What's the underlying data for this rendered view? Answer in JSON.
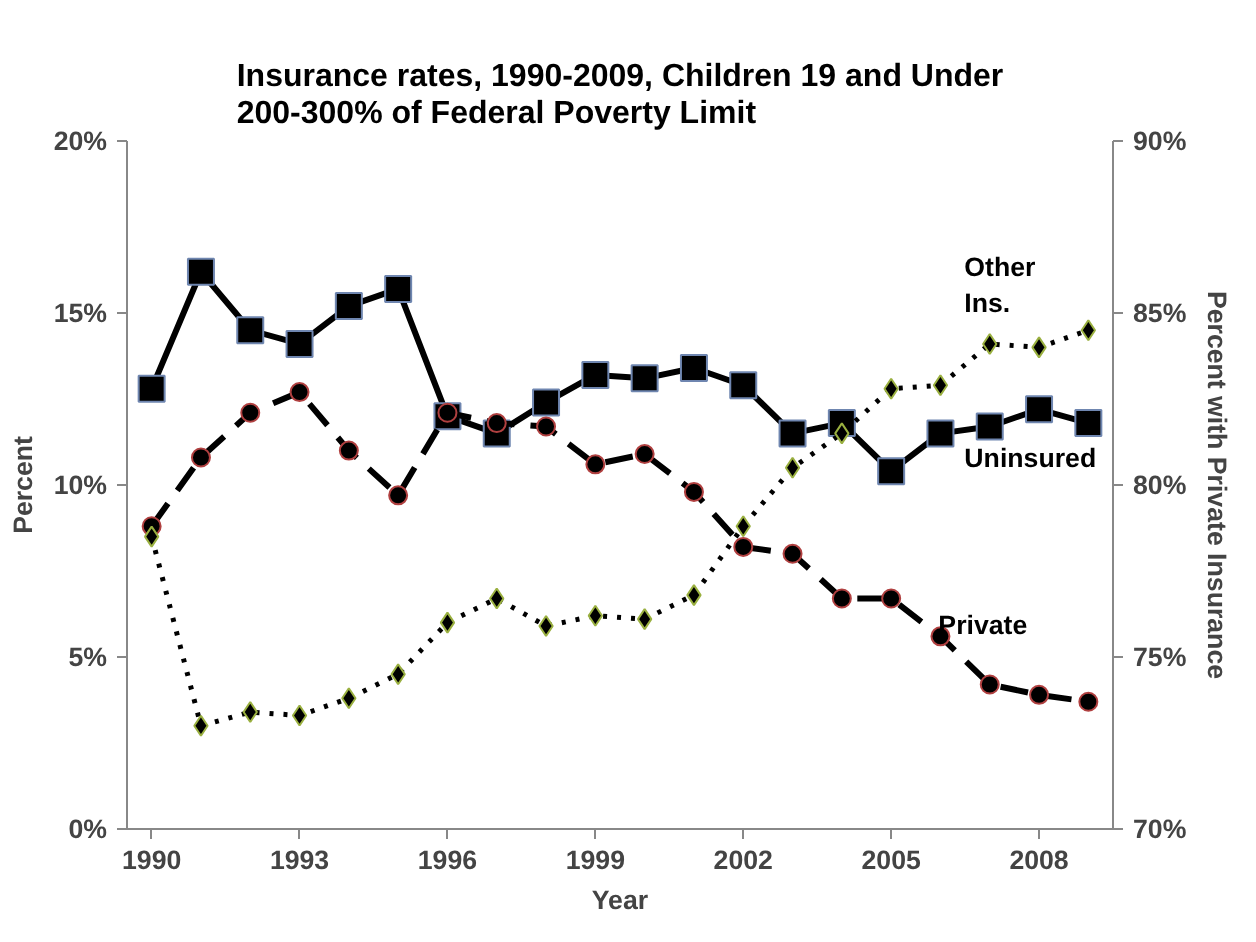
{
  "chart_data": {
    "type": "line",
    "title": "Insurance rates, 1990-2009, Children 19 and Under\n200-300% of Federal Poverty Limit",
    "xlabel": "Year",
    "ylabel": "Percent",
    "y2label": "Percent with Private Insurance",
    "x": [
      1990,
      1991,
      1992,
      1993,
      1994,
      1995,
      1996,
      1997,
      1998,
      1999,
      2000,
      2001,
      2002,
      2003,
      2004,
      2005,
      2006,
      2007,
      2008,
      2009
    ],
    "xlim": [
      1989.5,
      2009.5
    ],
    "xticks": [
      1990,
      1993,
      1996,
      1999,
      2002,
      2005,
      2008
    ],
    "ylim": [
      0,
      20
    ],
    "yticks": [
      {
        "value": 0,
        "label": "0%"
      },
      {
        "value": 5,
        "label": "5%"
      },
      {
        "value": 10,
        "label": "10%"
      },
      {
        "value": 15,
        "label": "15%"
      },
      {
        "value": 20,
        "label": "20%"
      }
    ],
    "y2lim": [
      70,
      90
    ],
    "y2ticks": [
      {
        "value": 70,
        "label": "70%"
      },
      {
        "value": 75,
        "label": "75%"
      },
      {
        "value": 80,
        "label": "80%"
      },
      {
        "value": 85,
        "label": "85%"
      },
      {
        "value": 90,
        "label": "90%"
      }
    ],
    "grid": false,
    "series": [
      {
        "name": "Uninsured",
        "color": "#000000",
        "marker": "square",
        "line_style": "solid",
        "values": [
          12.8,
          16.2,
          14.5,
          14.1,
          15.2,
          15.7,
          12.0,
          11.5,
          12.4,
          13.2,
          13.1,
          13.4,
          12.9,
          11.5,
          11.8,
          10.4,
          11.5,
          11.7,
          12.2,
          11.8
        ]
      },
      {
        "name": "Private",
        "color": "#000000",
        "marker": "circle",
        "line_style": "dashed",
        "axis": "y2",
        "values": [
          78.8,
          80.8,
          82.1,
          82.7,
          81.0,
          79.7,
          82.1,
          81.8,
          81.7,
          80.6,
          80.9,
          79.8,
          78.2,
          78.0,
          76.7,
          76.7,
          75.6,
          74.2,
          73.9,
          73.7
        ]
      },
      {
        "name": "Other\nIns.",
        "color": "#000000",
        "marker": "diamond",
        "line_style": "dotted",
        "values": [
          8.5,
          3.0,
          3.4,
          3.3,
          3.8,
          4.5,
          6.0,
          6.7,
          5.9,
          6.2,
          6.1,
          6.8,
          8.8,
          10.5,
          11.5,
          12.8,
          12.9,
          14.1,
          14.0,
          14.5
        ]
      }
    ]
  }
}
